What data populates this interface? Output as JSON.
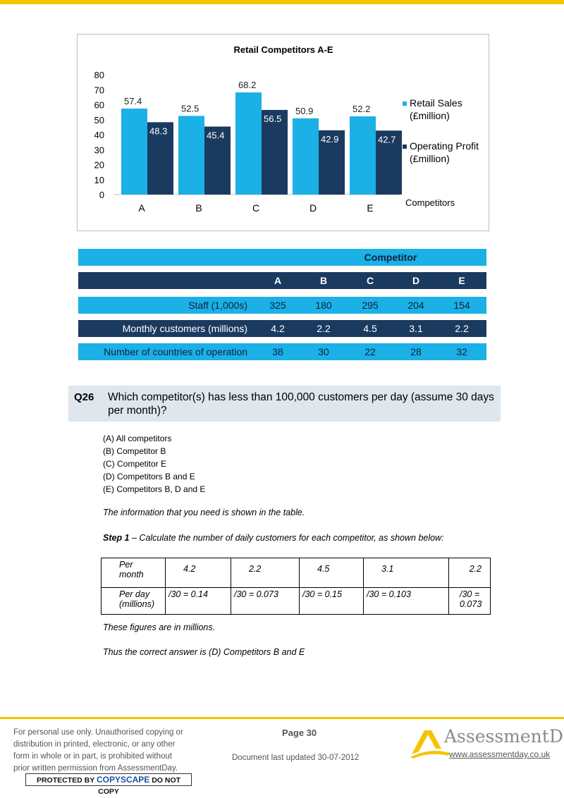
{
  "chart_data": {
    "type": "bar",
    "title": "Retail Competitors A-E",
    "xlabel": "Competitors",
    "ylabel": "",
    "categories": [
      "A",
      "B",
      "C",
      "D",
      "E"
    ],
    "ylim": [
      0,
      80
    ],
    "yticks": [
      0,
      10,
      20,
      30,
      40,
      50,
      60,
      70,
      80
    ],
    "series": [
      {
        "name": "Retail Sales (£million)",
        "name_lines": [
          "Retail Sales",
          "(£million)"
        ],
        "values": [
          57.4,
          52.5,
          68.2,
          50.9,
          52.2
        ],
        "color": "#1bb0e6",
        "labels": [
          "57.4",
          "52.5",
          "68.2",
          "50.9",
          "52.2"
        ]
      },
      {
        "name": "Operating Profit (£million)",
        "name_lines": [
          "Operating Profit",
          "(£million)"
        ],
        "values": [
          48.3,
          45.4,
          56.5,
          42.9,
          42.7
        ],
        "color": "#1b3a5f",
        "labels": [
          "48.3",
          "45.4",
          "56.5",
          "42.9",
          "42.7"
        ]
      }
    ],
    "legend": "right",
    "grid": false
  },
  "competitor_table": {
    "title": "Competitor",
    "columns": [
      "A",
      "B",
      "C",
      "D",
      "E"
    ],
    "rows": [
      {
        "label": "Staff (1,000s)",
        "values": [
          "325",
          "180",
          "295",
          "204",
          "154"
        ]
      },
      {
        "label": "Monthly customers (millions)",
        "values": [
          "4.2",
          "2.2",
          "4.5",
          "3.1",
          "2.2"
        ]
      },
      {
        "label": "Number of countries of operation",
        "values": [
          "38",
          "30",
          "22",
          "28",
          "32"
        ]
      }
    ]
  },
  "question": {
    "number": "Q26",
    "text": "Which competitor(s) has less than 100,000 customers per day (assume 30 days per month)?",
    "options": [
      "(A) All competitors",
      "(B) Competitor B",
      "(C) Competitor E",
      "(D) Competitors B and E",
      "(E) Competitors B, D and E"
    ]
  },
  "explanation": {
    "intro": "The information that you need is shown in the table.",
    "step_label": "Step 1",
    "step_text": " – Calculate the number of daily customers for each competitor, as shown below:",
    "table": {
      "row1_label": [
        "Per",
        "month"
      ],
      "row1": [
        "4.2",
        "2.2",
        "4.5",
        "3.1",
        "2.2"
      ],
      "row2_label": [
        "Per day",
        "(millions)"
      ],
      "row2": [
        "/30 = 0.14",
        "/30 = 0.073",
        "/30 = 0.15",
        "/30 = 0.103",
        "/30 ="
      ],
      "row2_last_extra": "0.073"
    },
    "note": "These figures are in millions.",
    "conclusion": "Thus the correct answer is (D) Competitors B and E"
  },
  "footer": {
    "disclaimer_lines": [
      "For personal use only. Unauthorised copying or",
      "distribution in printed, electronic, or any other",
      "form in whole or in part, is prohibited without",
      "prior written permission from AssessmentDay."
    ],
    "copyscape_pre": "PROTECTED BY ",
    "copyscape_brand": "COPYSCAPE",
    "copyscape_post": " DO NOT COPY",
    "page": "Page 30",
    "updated": "Document last updated 30-07-2012",
    "brand": "AssessmentDay",
    "url": "www.assessmentday.co.uk",
    "accent": "#f5c400"
  }
}
